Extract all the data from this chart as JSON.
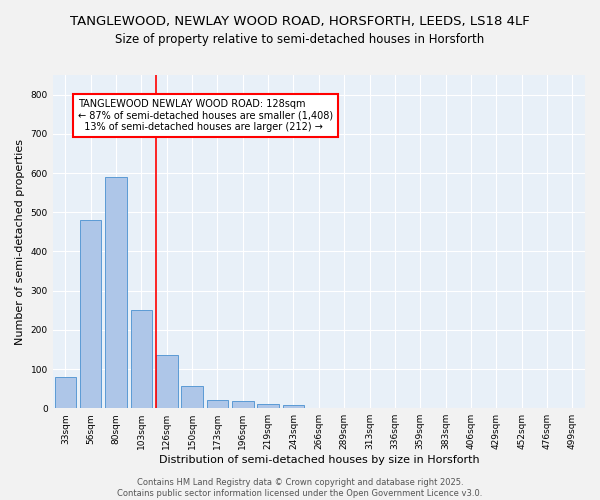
{
  "title_line1": "TANGLEWOOD, NEWLAY WOOD ROAD, HORSFORTH, LEEDS, LS18 4LF",
  "title_line2": "Size of property relative to semi-detached houses in Horsforth",
  "xlabel": "Distribution of semi-detached houses by size in Horsforth",
  "ylabel": "Number of semi-detached properties",
  "categories": [
    "33sqm",
    "56sqm",
    "80sqm",
    "103sqm",
    "126sqm",
    "150sqm",
    "173sqm",
    "196sqm",
    "219sqm",
    "243sqm",
    "266sqm",
    "289sqm",
    "313sqm",
    "336sqm",
    "359sqm",
    "383sqm",
    "406sqm",
    "429sqm",
    "452sqm",
    "476sqm",
    "499sqm"
  ],
  "values": [
    80,
    480,
    590,
    250,
    135,
    57,
    22,
    18,
    12,
    8,
    0,
    0,
    0,
    0,
    0,
    0,
    0,
    0,
    0,
    0,
    0
  ],
  "bar_color": "#aec6e8",
  "bar_edge_color": "#5b9bd5",
  "red_line_bar_index": 4,
  "annotation_text_line1": "TANGLEWOOD NEWLAY WOOD ROAD: 128sqm",
  "annotation_text_line2": "← 87% of semi-detached houses are smaller (1,408)",
  "annotation_text_line3": "  13% of semi-detached houses are larger (212) →",
  "ylim": [
    0,
    850
  ],
  "yticks": [
    0,
    100,
    200,
    300,
    400,
    500,
    600,
    700,
    800
  ],
  "plot_bg_color": "#e8f0f8",
  "fig_bg_color": "#f2f2f2",
  "grid_color": "#ffffff",
  "footer_text": "Contains HM Land Registry data © Crown copyright and database right 2025.\nContains public sector information licensed under the Open Government Licence v3.0.",
  "title_fontsize": 9.5,
  "subtitle_fontsize": 8.5,
  "annotation_fontsize": 7,
  "axis_label_fontsize": 8,
  "tick_fontsize": 6.5,
  "footer_fontsize": 6
}
